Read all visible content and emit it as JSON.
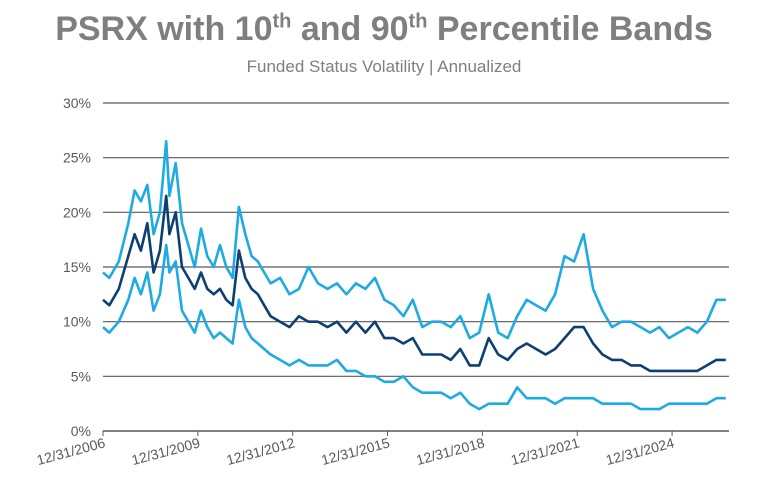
{
  "title": {
    "pre": "PSRX with 10",
    "sup1": "th",
    "mid": " and 90",
    "sup2": "th",
    "post": " Percentile Bands"
  },
  "subtitle": "Funded Status Volatility | Annualized",
  "colors": {
    "band": "#1eaae2",
    "median": "#0d3f73",
    "grid": "#595959",
    "text": "#7f7f7f"
  },
  "chart_data": {
    "type": "line",
    "title": "PSRX with 10th and 90th Percentile Bands",
    "subtitle": "Funded Status Volatility | Annualized",
    "xlabel": "",
    "ylabel": "",
    "ylim": [
      0,
      30
    ],
    "y_ticks": [
      "0%",
      "5%",
      "10%",
      "15%",
      "20%",
      "25%",
      "30%"
    ],
    "x_tick_labels": [
      "12/31/2006",
      "12/31/2009",
      "12/31/2012",
      "12/31/2015",
      "12/31/2018",
      "12/31/2021",
      "12/31/2024"
    ],
    "x_tick_years": [
      2007,
      2010,
      2013,
      2016,
      2019,
      2022,
      2025
    ],
    "xlim": [
      2007,
      2026.8
    ],
    "grid": true,
    "legend": "none",
    "series": [
      {
        "role": "90th percentile",
        "x": [
          2007.0,
          2007.2,
          2007.5,
          2007.8,
          2008.0,
          2008.2,
          2008.4,
          2008.6,
          2008.8,
          2009.0,
          2009.1,
          2009.3,
          2009.5,
          2009.7,
          2009.9,
          2010.1,
          2010.3,
          2010.5,
          2010.7,
          2010.9,
          2011.1,
          2011.3,
          2011.5,
          2011.7,
          2011.9,
          2012.1,
          2012.3,
          2012.6,
          2012.9,
          2013.2,
          2013.5,
          2013.8,
          2014.1,
          2014.4,
          2014.7,
          2015.0,
          2015.3,
          2015.6,
          2015.9,
          2016.2,
          2016.5,
          2016.8,
          2017.1,
          2017.4,
          2017.7,
          2018.0,
          2018.3,
          2018.6,
          2018.9,
          2019.2,
          2019.5,
          2019.8,
          2020.1,
          2020.4,
          2020.7,
          2021.0,
          2021.3,
          2021.6,
          2021.9,
          2022.2,
          2022.5,
          2022.8,
          2023.1,
          2023.4,
          2023.7,
          2024.0,
          2024.3,
          2024.6,
          2024.9,
          2025.2,
          2025.5,
          2025.8,
          2026.1,
          2026.4,
          2026.7
        ],
        "values": [
          14.5,
          14.0,
          15.5,
          19.0,
          22.0,
          21.0,
          22.5,
          18.0,
          20.0,
          26.5,
          21.5,
          24.5,
          19.0,
          17.0,
          15.0,
          18.5,
          16.0,
          15.0,
          17.0,
          15.0,
          14.0,
          20.5,
          18.0,
          16.0,
          15.5,
          14.5,
          13.5,
          14.0,
          12.5,
          13.0,
          15.0,
          13.5,
          13.0,
          13.5,
          12.5,
          13.5,
          13.0,
          14.0,
          12.0,
          11.5,
          10.5,
          12.0,
          9.5,
          10.0,
          10.0,
          9.5,
          10.5,
          8.5,
          9.0,
          12.5,
          9.0,
          8.5,
          10.5,
          12.0,
          11.5,
          11.0,
          12.5,
          16.0,
          15.5,
          18.0,
          13.0,
          11.0,
          9.5,
          10.0,
          10.0,
          9.5,
          9.0,
          9.5,
          8.5,
          9.0,
          9.5,
          9.0,
          10.0,
          12.0,
          12.0
        ]
      },
      {
        "role": "median",
        "x": [
          2007.0,
          2007.2,
          2007.5,
          2007.8,
          2008.0,
          2008.2,
          2008.4,
          2008.6,
          2008.8,
          2009.0,
          2009.1,
          2009.3,
          2009.5,
          2009.7,
          2009.9,
          2010.1,
          2010.3,
          2010.5,
          2010.7,
          2010.9,
          2011.1,
          2011.3,
          2011.5,
          2011.7,
          2011.9,
          2012.1,
          2012.3,
          2012.6,
          2012.9,
          2013.2,
          2013.5,
          2013.8,
          2014.1,
          2014.4,
          2014.7,
          2015.0,
          2015.3,
          2015.6,
          2015.9,
          2016.2,
          2016.5,
          2016.8,
          2017.1,
          2017.4,
          2017.7,
          2018.0,
          2018.3,
          2018.6,
          2018.9,
          2019.2,
          2019.5,
          2019.8,
          2020.1,
          2020.4,
          2020.7,
          2021.0,
          2021.3,
          2021.6,
          2021.9,
          2022.2,
          2022.5,
          2022.8,
          2023.1,
          2023.4,
          2023.7,
          2024.0,
          2024.3,
          2024.6,
          2024.9,
          2025.2,
          2025.5,
          2025.8,
          2026.1,
          2026.4,
          2026.7
        ],
        "values": [
          12.0,
          11.5,
          13.0,
          16.0,
          18.0,
          16.5,
          19.0,
          14.5,
          16.5,
          21.5,
          18.0,
          20.0,
          15.0,
          14.0,
          13.0,
          14.5,
          13.0,
          12.5,
          13.0,
          12.0,
          11.5,
          16.5,
          14.0,
          13.0,
          12.5,
          11.5,
          10.5,
          10.0,
          9.5,
          10.5,
          10.0,
          10.0,
          9.5,
          10.0,
          9.0,
          10.0,
          9.0,
          10.0,
          8.5,
          8.5,
          8.0,
          8.5,
          7.0,
          7.0,
          7.0,
          6.5,
          7.5,
          6.0,
          6.0,
          8.5,
          7.0,
          6.5,
          7.5,
          8.0,
          7.5,
          7.0,
          7.5,
          8.5,
          9.5,
          9.5,
          8.0,
          7.0,
          6.5,
          6.5,
          6.0,
          6.0,
          5.5,
          5.5,
          5.5,
          5.5,
          5.5,
          5.5,
          6.0,
          6.5,
          6.5
        ]
      },
      {
        "role": "10th percentile",
        "x": [
          2007.0,
          2007.2,
          2007.5,
          2007.8,
          2008.0,
          2008.2,
          2008.4,
          2008.6,
          2008.8,
          2009.0,
          2009.1,
          2009.3,
          2009.5,
          2009.7,
          2009.9,
          2010.1,
          2010.3,
          2010.5,
          2010.7,
          2010.9,
          2011.1,
          2011.3,
          2011.5,
          2011.7,
          2011.9,
          2012.1,
          2012.3,
          2012.6,
          2012.9,
          2013.2,
          2013.5,
          2013.8,
          2014.1,
          2014.4,
          2014.7,
          2015.0,
          2015.3,
          2015.6,
          2015.9,
          2016.2,
          2016.5,
          2016.8,
          2017.1,
          2017.4,
          2017.7,
          2018.0,
          2018.3,
          2018.6,
          2018.9,
          2019.2,
          2019.5,
          2019.8,
          2020.1,
          2020.4,
          2020.7,
          2021.0,
          2021.3,
          2021.6,
          2021.9,
          2022.2,
          2022.5,
          2022.8,
          2023.1,
          2023.4,
          2023.7,
          2024.0,
          2024.3,
          2024.6,
          2024.9,
          2025.2,
          2025.5,
          2025.8,
          2026.1,
          2026.4,
          2026.7
        ],
        "values": [
          9.5,
          9.0,
          10.0,
          12.0,
          14.0,
          12.5,
          14.5,
          11.0,
          12.5,
          17.0,
          14.5,
          15.5,
          11.0,
          10.0,
          9.0,
          11.0,
          9.5,
          8.5,
          9.0,
          8.5,
          8.0,
          12.0,
          9.5,
          8.5,
          8.0,
          7.5,
          7.0,
          6.5,
          6.0,
          6.5,
          6.0,
          6.0,
          6.0,
          6.5,
          5.5,
          5.5,
          5.0,
          5.0,
          4.5,
          4.5,
          5.0,
          4.0,
          3.5,
          3.5,
          3.5,
          3.0,
          3.5,
          2.5,
          2.0,
          2.5,
          2.5,
          2.5,
          4.0,
          3.0,
          3.0,
          3.0,
          2.5,
          3.0,
          3.0,
          3.0,
          3.0,
          2.5,
          2.5,
          2.5,
          2.5,
          2.0,
          2.0,
          2.0,
          2.5,
          2.5,
          2.5,
          2.5,
          2.5,
          3.0,
          3.0
        ]
      }
    ]
  }
}
